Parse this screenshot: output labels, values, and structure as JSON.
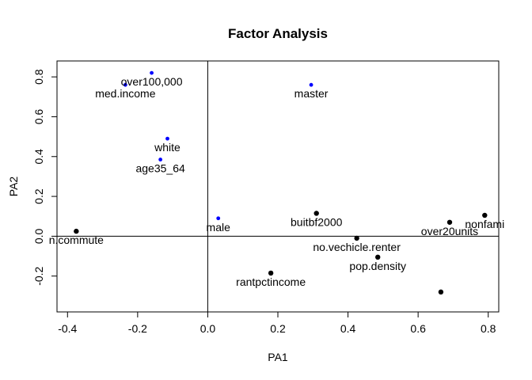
{
  "chart_data": {
    "type": "scatter",
    "title": "Factor Analysis",
    "xlabel": "PA1",
    "ylabel": "PA2",
    "xlim": [
      -0.43,
      0.83
    ],
    "ylim": [
      -0.38,
      0.88
    ],
    "x_ticks": [
      -0.4,
      -0.2,
      0.0,
      0.2,
      0.4,
      0.6,
      0.8
    ],
    "x_tick_labels": [
      "-0.4",
      "-0.2",
      "0.0",
      "0.2",
      "0.4",
      "0.6",
      "0.8"
    ],
    "y_ticks": [
      -0.2,
      0.0,
      0.2,
      0.4,
      0.6,
      0.8
    ],
    "y_tick_labels": [
      "-0.2",
      "0.0",
      "0.2",
      "0.4",
      "0.6",
      "0.8"
    ],
    "reference_lines": {
      "x": 0,
      "y": 0
    },
    "grid": false,
    "colors": {
      "blue_points": "#0000ff",
      "black_points": "#000000",
      "axes": "#000000"
    },
    "points": [
      {
        "label": "over100,000",
        "x": -0.16,
        "y": 0.82,
        "color": "#0000ff"
      },
      {
        "label": "med.income",
        "x": -0.235,
        "y": 0.76,
        "color": "#0000ff"
      },
      {
        "label": "master",
        "x": 0.295,
        "y": 0.76,
        "color": "#0000ff"
      },
      {
        "label": "white",
        "x": -0.115,
        "y": 0.49,
        "color": "#0000ff"
      },
      {
        "label": "age35_64",
        "x": -0.135,
        "y": 0.385,
        "color": "#0000ff"
      },
      {
        "label": "male",
        "x": 0.03,
        "y": 0.09,
        "color": "#0000ff"
      },
      {
        "label": "n.commute",
        "x": -0.375,
        "y": 0.025,
        "color": "#000000"
      },
      {
        "label": "buitbf2000",
        "x": 0.31,
        "y": 0.115,
        "color": "#000000"
      },
      {
        "label": "over20units",
        "x": 0.69,
        "y": 0.07,
        "color": "#000000"
      },
      {
        "label": "nonfami",
        "x": 0.79,
        "y": 0.105,
        "color": "#000000"
      },
      {
        "label": "no.vechicle.renter",
        "x": 0.425,
        "y": -0.01,
        "color": "#000000"
      },
      {
        "label": "pop.density",
        "x": 0.485,
        "y": -0.105,
        "color": "#000000"
      },
      {
        "label": "rantpctincome",
        "x": 0.18,
        "y": -0.185,
        "color": "#000000"
      },
      {
        "label": "",
        "x": 0.665,
        "y": -0.28,
        "color": "#000000"
      }
    ]
  }
}
